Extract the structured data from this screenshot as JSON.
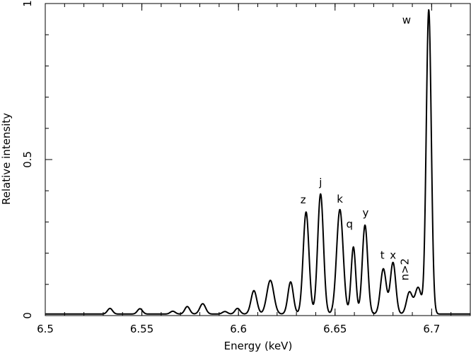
{
  "chart_data": {
    "type": "line",
    "title": "",
    "xlabel": "Energy (keV)",
    "ylabel": "Relative intensity",
    "xlim": [
      6.5,
      6.72
    ],
    "ylim": [
      0,
      1
    ],
    "grid": false,
    "line_color": "#000000",
    "x_ticks": [
      {
        "value": 6.5,
        "label": "6.5"
      },
      {
        "value": 6.55,
        "label": "6.55"
      },
      {
        "value": 6.6,
        "label": "6.6"
      },
      {
        "value": 6.65,
        "label": "6.65"
      },
      {
        "value": 6.7,
        "label": "6.7"
      }
    ],
    "x_minor_step": 0.01,
    "y_ticks": [
      {
        "value": 0,
        "label": "0"
      },
      {
        "value": 0.5,
        "label": "0.5"
      },
      {
        "value": 1,
        "label": "1"
      }
    ],
    "y_minor_step": 0.1,
    "baseline": 0.005,
    "peaks": [
      {
        "x": 6.5335,
        "h": 0.018,
        "w": 0.0013
      },
      {
        "x": 6.549,
        "h": 0.017,
        "w": 0.0013
      },
      {
        "x": 6.566,
        "h": 0.009,
        "w": 0.0013
      },
      {
        "x": 6.5735,
        "h": 0.024,
        "w": 0.0013
      },
      {
        "x": 6.5815,
        "h": 0.033,
        "w": 0.0015
      },
      {
        "x": 6.593,
        "h": 0.008,
        "w": 0.0013
      },
      {
        "x": 6.5995,
        "h": 0.018,
        "w": 0.0013
      },
      {
        "x": 6.608,
        "h": 0.075,
        "w": 0.0015
      },
      {
        "x": 6.6165,
        "h": 0.108,
        "w": 0.0018
      },
      {
        "x": 6.627,
        "h": 0.103,
        "w": 0.0014
      },
      {
        "x": 6.635,
        "h": 0.327,
        "w": 0.0015
      },
      {
        "x": 6.6425,
        "h": 0.385,
        "w": 0.0015
      },
      {
        "x": 6.6525,
        "h": 0.335,
        "w": 0.0017
      },
      {
        "x": 6.6595,
        "h": 0.215,
        "w": 0.0012
      },
      {
        "x": 6.6655,
        "h": 0.285,
        "w": 0.0014
      },
      {
        "x": 6.675,
        "h": 0.145,
        "w": 0.0015
      },
      {
        "x": 6.68,
        "h": 0.165,
        "w": 0.0014
      },
      {
        "x": 6.6885,
        "h": 0.07,
        "w": 0.0015
      },
      {
        "x": 6.693,
        "h": 0.085,
        "w": 0.0016
      },
      {
        "x": 6.6985,
        "h": 0.975,
        "w": 0.0013
      }
    ],
    "annotations": [
      {
        "text": "z",
        "x": 6.6335,
        "y": 0.36,
        "rotate": 0
      },
      {
        "text": "j",
        "x": 6.6425,
        "y": 0.415,
        "rotate": 0
      },
      {
        "text": "k",
        "x": 6.6525,
        "y": 0.362,
        "rotate": 0
      },
      {
        "text": "q",
        "x": 6.6575,
        "y": 0.282,
        "rotate": 0
      },
      {
        "text": "y",
        "x": 6.6658,
        "y": 0.318,
        "rotate": 0
      },
      {
        "text": "t",
        "x": 6.6745,
        "y": 0.182,
        "rotate": 0
      },
      {
        "text": "x",
        "x": 6.68,
        "y": 0.182,
        "rotate": 0
      },
      {
        "text": "n>2",
        "x": 6.688,
        "y": 0.148,
        "rotate": -90
      },
      {
        "text": "w",
        "x": 6.687,
        "y": 0.935,
        "rotate": 0
      }
    ]
  }
}
